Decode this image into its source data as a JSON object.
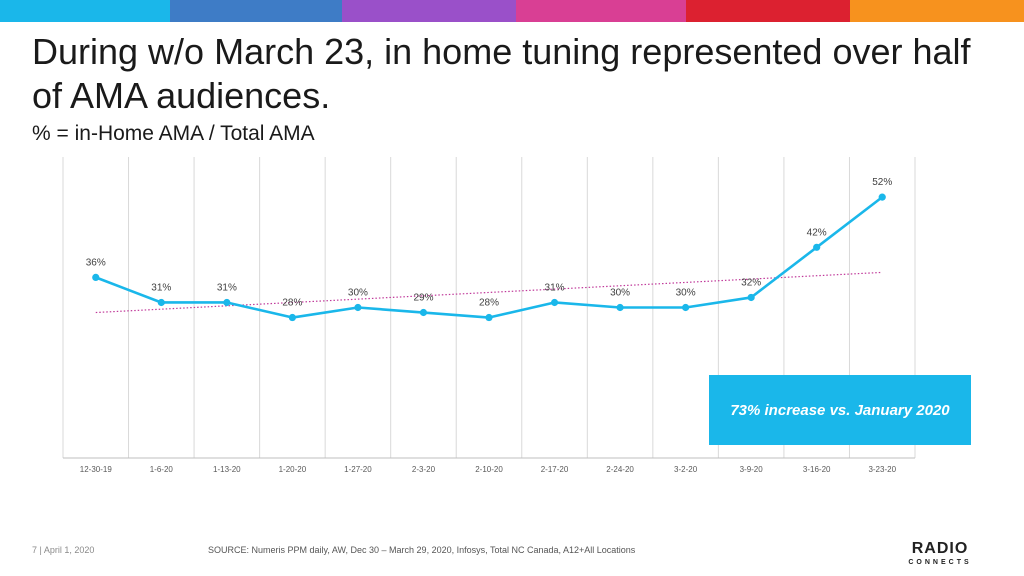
{
  "header": {
    "title": "During w/o March 23, in home tuning represented over half of AMA audiences.",
    "subtitle": "% = in-Home AMA / Total AMA",
    "color_bar": [
      "#1ab7ea",
      "#3e7cc6",
      "#9a50c9",
      "#d93f94",
      "#dc2130",
      "#f7921e"
    ]
  },
  "callout": {
    "text": "73% increase vs. January 2020",
    "color": "#1ab7ea"
  },
  "footer": {
    "page_info": "7 | April 1, 2020",
    "source": "SOURCE: Numeris PPM daily, AW, Dec 30 – March 29, 2020, Infosys, Total NC Canada, A12+All Locations"
  },
  "logo": {
    "main": "RADIO",
    "sub": "CONNECTS"
  },
  "chart_data": {
    "type": "line",
    "categories": [
      "12-30-19",
      "1-6-20",
      "1-13-20",
      "1-20-20",
      "1-27-20",
      "2-3-20",
      "2-10-20",
      "2-17-20",
      "2-24-20",
      "3-2-20",
      "3-9-20",
      "3-16-20",
      "3-23-20"
    ],
    "series": [
      {
        "values": [
          36,
          31,
          31,
          28,
          30,
          29,
          28,
          31,
          30,
          30,
          32,
          42,
          52
        ],
        "labels": [
          "36%",
          "31%",
          "31%",
          "28%",
          "30%",
          "29%",
          "28%",
          "31%",
          "30%",
          "30%",
          "32%",
          "42%",
          "52%"
        ],
        "color": "#1ab7ea"
      }
    ],
    "trendline": {
      "style": "dotted",
      "color": "#c0399a",
      "from": 29,
      "to": 37
    },
    "ylim": [
      0,
      60
    ],
    "grid": "vertical",
    "legend": "none"
  }
}
